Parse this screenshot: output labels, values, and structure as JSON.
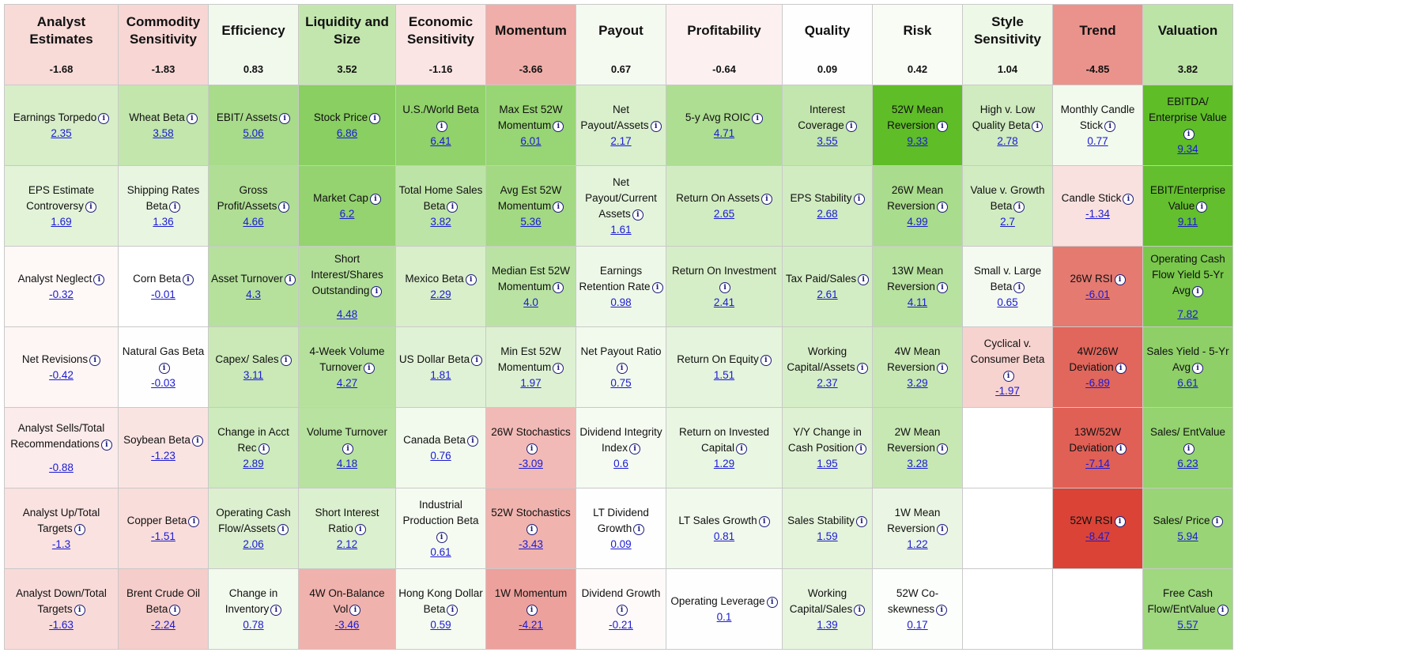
{
  "columns": [
    {
      "name": "Analyst Estimates",
      "score": "-1.68"
    },
    {
      "name": "Commodity Sensitivity",
      "score": "-1.83"
    },
    {
      "name": "Efficiency",
      "score": "0.83"
    },
    {
      "name": "Liquidity and Size",
      "score": "3.52"
    },
    {
      "name": "Economic Sensitivity",
      "score": "-1.16"
    },
    {
      "name": "Momentum",
      "score": "-3.66"
    },
    {
      "name": "Payout",
      "score": "0.67"
    },
    {
      "name": "Profitability",
      "score": "-0.64"
    },
    {
      "name": "Quality",
      "score": "0.09"
    },
    {
      "name": "Risk",
      "score": "0.42"
    },
    {
      "name": "Style Sensitivity",
      "score": "1.04"
    },
    {
      "name": "Trend",
      "score": "-4.85"
    },
    {
      "name": "Valuation",
      "score": "3.82"
    }
  ],
  "rows": [
    [
      {
        "label": "Earnings Torpedo",
        "value": "2.35"
      },
      {
        "label": "Wheat Beta",
        "value": "3.58"
      },
      {
        "label": "EBIT/ Assets",
        "value": "5.06"
      },
      {
        "label": "Stock Price",
        "value": "6.86"
      },
      {
        "label": "U.S./World Beta",
        "value": "6.41"
      },
      {
        "label": "Max Est 52W Momentum",
        "value": "6.01"
      },
      {
        "label": "Net Payout/Assets",
        "value": "2.17"
      },
      {
        "label": "5-y Avg ROIC",
        "value": "4.71"
      },
      {
        "label": "Interest Coverage",
        "value": "3.55"
      },
      {
        "label": "52W Mean Reversion",
        "value": "9.33"
      },
      {
        "label": "High v. Low Quality Beta",
        "value": "2.78"
      },
      {
        "label": "Monthly Candle Stick",
        "value": "0.77"
      },
      {
        "label": "EBITDA/ Enterprise Value",
        "value": "9.34"
      }
    ],
    [
      {
        "label": "EPS Estimate Controversy",
        "value": "1.69"
      },
      {
        "label": "Shipping Rates Beta",
        "value": "1.36"
      },
      {
        "label": "Gross Profit/Assets",
        "value": "4.66"
      },
      {
        "label": "Market Cap",
        "value": "6.2"
      },
      {
        "label": "Total Home Sales Beta",
        "value": "3.82"
      },
      {
        "label": "Avg Est 52W Momentum",
        "value": "5.36"
      },
      {
        "label": "Net Payout/Current Assets",
        "value": "1.61"
      },
      {
        "label": "Return On Assets",
        "value": "2.65"
      },
      {
        "label": "EPS Stability",
        "value": "2.68"
      },
      {
        "label": "26W Mean Reversion",
        "value": "4.99"
      },
      {
        "label": "Value v. Growth Beta",
        "value": "2.7"
      },
      {
        "label": "Candle Stick",
        "value": "-1.34"
      },
      {
        "label": "EBIT/Enterprise Value",
        "value": "9.11"
      }
    ],
    [
      {
        "label": "Analyst Neglect",
        "value": "-0.32"
      },
      {
        "label": "Corn Beta",
        "value": "-0.01"
      },
      {
        "label": "Asset Turnover",
        "value": "4.3"
      },
      {
        "label": "Short Interest/Shares Outstanding",
        "value": "4.48"
      },
      {
        "label": "Mexico Beta",
        "value": "2.29"
      },
      {
        "label": "Median Est 52W Momentum",
        "value": "4.0"
      },
      {
        "label": "Earnings Retention Rate",
        "value": "0.98"
      },
      {
        "label": "Return On Investment",
        "value": "2.41"
      },
      {
        "label": "Tax Paid/Sales",
        "value": "2.61"
      },
      {
        "label": "13W Mean Reversion",
        "value": "4.11"
      },
      {
        "label": "Small v. Large Beta",
        "value": "0.65"
      },
      {
        "label": "26W RSI",
        "value": "-6.01"
      },
      {
        "label": "Operating Cash Flow Yield 5-Yr Avg",
        "value": "7.82"
      }
    ],
    [
      {
        "label": "Net Revisions",
        "value": "-0.42"
      },
      {
        "label": "Natural Gas Beta",
        "value": "-0.03"
      },
      {
        "label": "Capex/ Sales",
        "value": "3.11"
      },
      {
        "label": "4-Week Volume Turnover",
        "value": "4.27"
      },
      {
        "label": "US Dollar Beta",
        "value": "1.81"
      },
      {
        "label": "Min Est 52W Momentum",
        "value": "1.97"
      },
      {
        "label": "Net Payout Ratio",
        "value": "0.75"
      },
      {
        "label": "Return On Equity",
        "value": "1.51"
      },
      {
        "label": "Working Capital/Assets",
        "value": "2.37"
      },
      {
        "label": "4W Mean Reversion",
        "value": "3.29"
      },
      {
        "label": "Cyclical v. Consumer Beta",
        "value": "-1.97"
      },
      {
        "label": "4W/26W Deviation",
        "value": "-6.89"
      },
      {
        "label": "Sales Yield - 5-Yr Avg",
        "value": "6.61"
      }
    ],
    [
      {
        "label": "Analyst Sells/Total Recommendations",
        "value": "-0.88"
      },
      {
        "label": "Soybean Beta",
        "value": "-1.23"
      },
      {
        "label": "Change in Acct Rec",
        "value": "2.89"
      },
      {
        "label": "Volume Turnover",
        "value": "4.18"
      },
      {
        "label": "Canada Beta",
        "value": "0.76"
      },
      {
        "label": "26W Stochastics",
        "value": "-3.09"
      },
      {
        "label": "Dividend Integrity Index",
        "value": "0.6"
      },
      {
        "label": "Return on Invested Capital",
        "value": "1.29"
      },
      {
        "label": "Y/Y Change in Cash Position",
        "value": "1.95"
      },
      {
        "label": "2W Mean Reversion",
        "value": "3.28"
      },
      null,
      {
        "label": "13W/52W Deviation",
        "value": "-7.14"
      },
      {
        "label": "Sales/ EntValue",
        "value": "6.23"
      }
    ],
    [
      {
        "label": "Analyst Up/Total Targets",
        "value": "-1.3"
      },
      {
        "label": "Copper Beta",
        "value": "-1.51"
      },
      {
        "label": "Operating Cash Flow/Assets",
        "value": "2.06"
      },
      {
        "label": "Short Interest Ratio",
        "value": "2.12"
      },
      {
        "label": "Industrial Production Beta",
        "value": "0.61"
      },
      {
        "label": "52W Stochastics",
        "value": "-3.43"
      },
      {
        "label": "LT Dividend Growth",
        "value": "0.09"
      },
      {
        "label": "LT Sales Growth",
        "value": "0.81"
      },
      {
        "label": "Sales Stability",
        "value": "1.59"
      },
      {
        "label": "1W Mean Reversion",
        "value": "1.22"
      },
      null,
      {
        "label": "52W RSI",
        "value": "-8.47"
      },
      {
        "label": "Sales/ Price",
        "value": "5.94"
      }
    ],
    [
      {
        "label": "Analyst Down/Total Targets",
        "value": "-1.63"
      },
      {
        "label": "Brent Crude Oil Beta",
        "value": "-2.24"
      },
      {
        "label": "Change in Inventory",
        "value": "0.78"
      },
      {
        "label": "4W On-Balance Vol",
        "value": "-3.46"
      },
      {
        "label": "Hong Kong Dollar Beta",
        "value": "0.59"
      },
      {
        "label": "1W Momentum",
        "value": "-4.21"
      },
      {
        "label": "Dividend Growth",
        "value": "-0.21"
      },
      {
        "label": "Operating Leverage",
        "value": "0.1"
      },
      {
        "label": "Working Capital/Sales",
        "value": "1.39"
      },
      {
        "label": "52W Co-skewness",
        "value": "0.17"
      },
      null,
      null,
      {
        "label": "Free Cash Flow/EntValue",
        "value": "5.57"
      }
    ]
  ],
  "info_glyph": "i",
  "icon": "info-circle-icon"
}
